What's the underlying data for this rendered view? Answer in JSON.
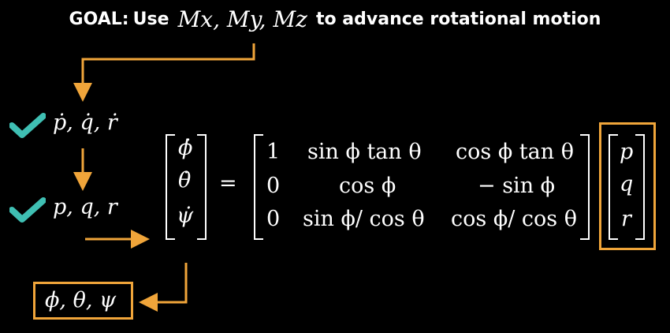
{
  "goal": {
    "label": "GOAL:",
    "use": "Use",
    "moments": "Mx, My, Mz",
    "text": "to advance rotational motion"
  },
  "left_items": {
    "body_rate_derivatives": "ṗ, q̇, ṙ",
    "body_rates": "p, q, r",
    "euler_angles": "ϕ, θ, ψ"
  },
  "equation": {
    "lhs": [
      "ϕ̇",
      "θ̇",
      "ψ̇"
    ],
    "equals": "=",
    "matrix": [
      [
        "1",
        "sin ϕ tan θ",
        "cos ϕ tan θ"
      ],
      [
        "0",
        "cos ϕ",
        "− sin ϕ"
      ],
      [
        "0",
        "sin ϕ/ cos θ",
        "cos ϕ/ cos θ"
      ]
    ],
    "rhs": [
      "p",
      "q",
      "r"
    ]
  },
  "colors": {
    "background": "#000000",
    "text": "#ffffff",
    "arrow": "#f0a53a",
    "check": "#3fbfb3",
    "box": "#f0a53a"
  },
  "icons": [
    "check-icon",
    "arrow-icon"
  ]
}
